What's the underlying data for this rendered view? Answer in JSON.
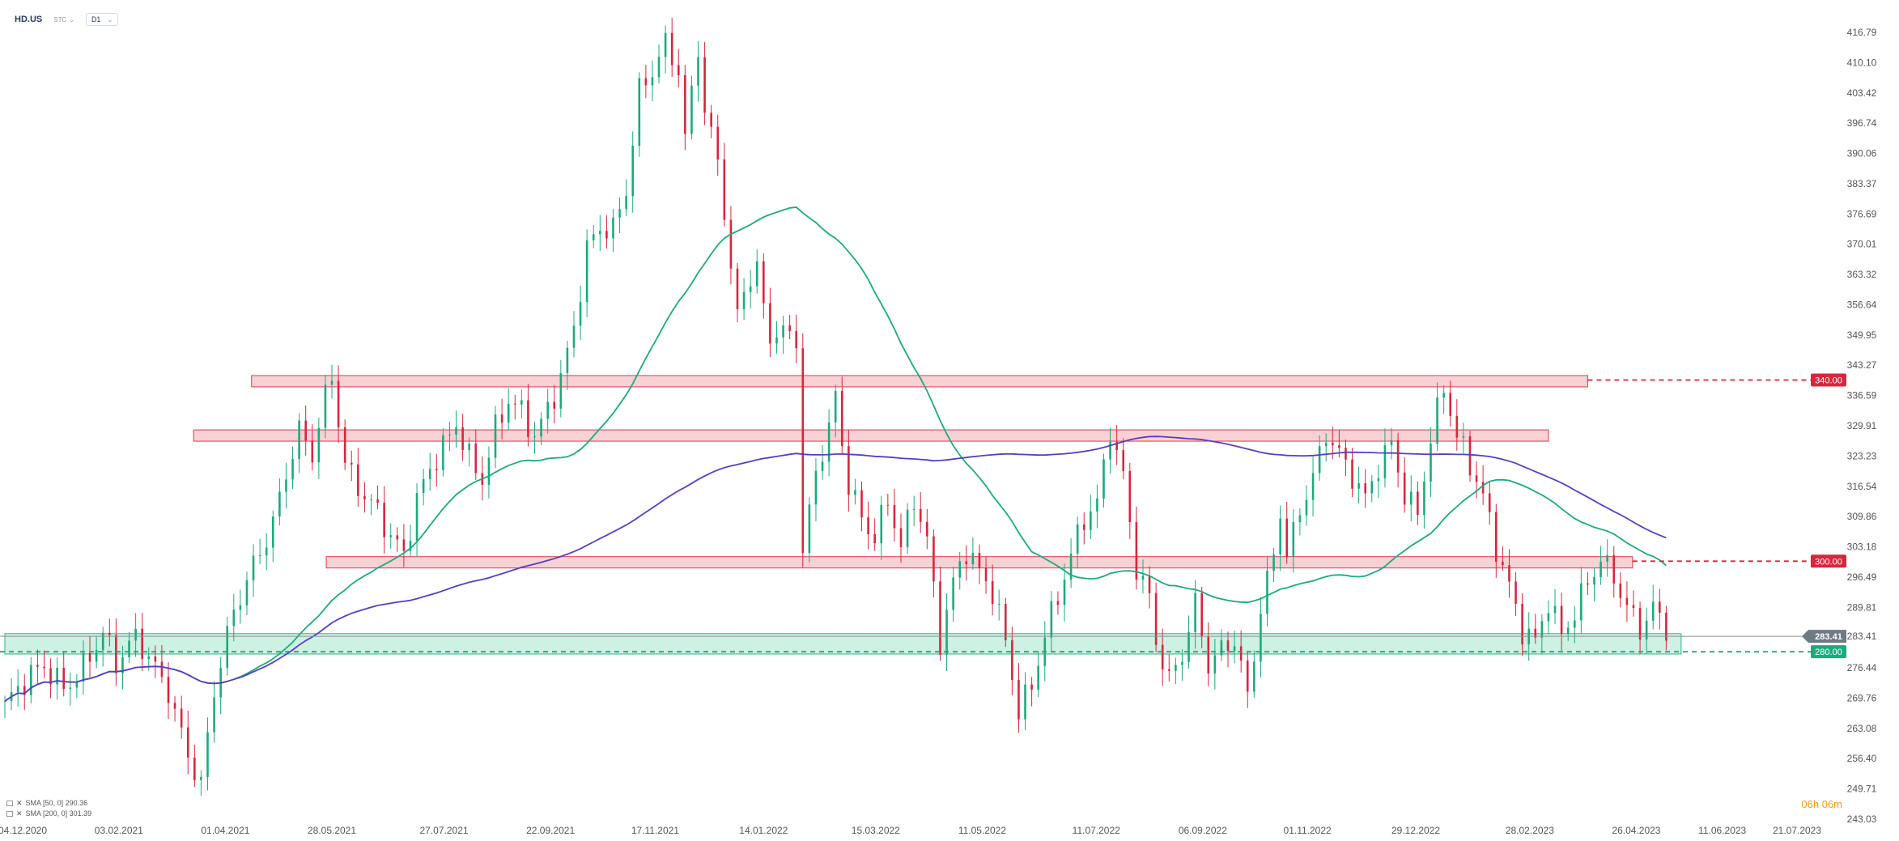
{
  "header": {
    "symbol": "HD.US",
    "timezone": "STC",
    "timeframe": "D1"
  },
  "legend": [
    {
      "label": "SMA [50, 0] 290.36",
      "color": "#1aab7d"
    },
    {
      "label": "SMA [200, 0] 301.39",
      "color": "#5b3cc4"
    }
  ],
  "timer": {
    "text": "06h 06m"
  },
  "colors": {
    "bull": "#1aab7d",
    "bear": "#d8263c",
    "sma50": "#1aab7d",
    "sma200": "#5b3cc4",
    "resistance_fill": "#f7cdd0",
    "resistance_line": "#d8263c",
    "support_fill": "#c8f0df",
    "support_line": "#1aab7d",
    "price_tag": "#707a85"
  },
  "chart_data": {
    "type": "candlestick",
    "y_range": [
      243.03,
      420.0
    ],
    "y_ticks": [
      "416.79",
      "410.10",
      "403.42",
      "396.74",
      "390.06",
      "383.37",
      "376.69",
      "370.01",
      "363.32",
      "356.64",
      "349.95",
      "343.27",
      "336.59",
      "329.91",
      "323.23",
      "316.54",
      "309.86",
      "303.18",
      "296.49",
      "289.81",
      "283.41",
      "276.44",
      "269.76",
      "263.08",
      "256.40",
      "249.71",
      "243.03"
    ],
    "x_labels": [
      "04.12.2020",
      "03.02.2021",
      "01.04.2021",
      "28.05.2021",
      "27.07.2021",
      "22.09.2021",
      "17.11.2021",
      "14.01.2022",
      "15.03.2022",
      "11.05.2022",
      "11.07.2022",
      "06.09.2022",
      "01.11.2022",
      "29.12.2022",
      "28.02.2023",
      "26.04.2023",
      "11.06.2023",
      "21.07.2023"
    ],
    "current_price": "283.41",
    "levels": [
      {
        "label": "340.00",
        "value": 340.0,
        "kind": "resistance"
      },
      {
        "label": "300.00",
        "value": 300.0,
        "kind": "resistance"
      },
      {
        "label": "280.00",
        "value": 280.0,
        "kind": "support"
      }
    ],
    "zones": [
      {
        "low": 338.5,
        "high": 341.0,
        "start": "15.04.2021",
        "end": "31.03.2023",
        "kind": "resistance"
      },
      {
        "low": 326.5,
        "high": 329.0,
        "start": "15.03.2021",
        "end": "10.03.2023",
        "kind": "resistance"
      },
      {
        "low": 298.5,
        "high": 301.0,
        "start": "25.05.2021",
        "end": "24.04.2023",
        "kind": "resistance"
      },
      {
        "low": 279.5,
        "high": 284.0,
        "start": "04.12.2020",
        "end": "20.05.2023",
        "kind": "support"
      }
    ],
    "price_path": [
      [
        0,
        268
      ],
      [
        3,
        272
      ],
      [
        6,
        276
      ],
      [
        9,
        273
      ],
      [
        12,
        278
      ],
      [
        15,
        284
      ],
      [
        17,
        276
      ],
      [
        20,
        282
      ],
      [
        22,
        279
      ],
      [
        25,
        273
      ],
      [
        28,
        258
      ],
      [
        30,
        250
      ],
      [
        32,
        270
      ],
      [
        35,
        288
      ],
      [
        38,
        300
      ],
      [
        41,
        310
      ],
      [
        43,
        320
      ],
      [
        45,
        328
      ],
      [
        47,
        322
      ],
      [
        49,
        335
      ],
      [
        50,
        340
      ],
      [
        52,
        322
      ],
      [
        54,
        318
      ],
      [
        57,
        312
      ],
      [
        59,
        305
      ],
      [
        61,
        300
      ],
      [
        63,
        312
      ],
      [
        65,
        320
      ],
      [
        67,
        326
      ],
      [
        69,
        332
      ],
      [
        71,
        324
      ],
      [
        73,
        318
      ],
      [
        75,
        328
      ],
      [
        77,
        334
      ],
      [
        79,
        332
      ],
      [
        81,
        328
      ],
      [
        83,
        335
      ],
      [
        85,
        342
      ],
      [
        87,
        352
      ],
      [
        89,
        368
      ],
      [
        91,
        372
      ],
      [
        93,
        372
      ],
      [
        95,
        382
      ],
      [
        97,
        405
      ],
      [
        99,
        410
      ],
      [
        101,
        415
      ],
      [
        103,
        408
      ],
      [
        104,
        392
      ],
      [
        106,
        412
      ],
      [
        107,
        398
      ],
      [
        109,
        388
      ],
      [
        110,
        378
      ],
      [
        111,
        365
      ],
      [
        112,
        355
      ],
      [
        113,
        362
      ],
      [
        115,
        366
      ],
      [
        116,
        356
      ],
      [
        117,
        350
      ],
      [
        119,
        349
      ],
      [
        121,
        348
      ],
      [
        122,
        300
      ],
      [
        124,
        320
      ],
      [
        126,
        330
      ],
      [
        127,
        338
      ],
      [
        129,
        318
      ],
      [
        131,
        310
      ],
      [
        133,
        304
      ],
      [
        135,
        312
      ],
      [
        137,
        302
      ],
      [
        139,
        314
      ],
      [
        141,
        306
      ],
      [
        143,
        284
      ],
      [
        145,
        296
      ],
      [
        147,
        302
      ],
      [
        149,
        296
      ],
      [
        151,
        292
      ],
      [
        153,
        282
      ],
      [
        155,
        268
      ],
      [
        157,
        274
      ],
      [
        159,
        285
      ],
      [
        161,
        292
      ],
      [
        163,
        300
      ],
      [
        165,
        308
      ],
      [
        167,
        312
      ],
      [
        169,
        330
      ],
      [
        171,
        320
      ],
      [
        173,
        300
      ],
      [
        175,
        292
      ],
      [
        176,
        282
      ],
      [
        178,
        272
      ],
      [
        180,
        278
      ],
      [
        182,
        290
      ],
      [
        184,
        278
      ],
      [
        186,
        282
      ],
      [
        188,
        284
      ],
      [
        190,
        270
      ],
      [
        192,
        288
      ],
      [
        194,
        300
      ],
      [
        195,
        310
      ],
      [
        196,
        300
      ],
      [
        198,
        312
      ],
      [
        200,
        320
      ],
      [
        202,
        330
      ],
      [
        204,
        324
      ],
      [
        206,
        318
      ],
      [
        208,
        312
      ],
      [
        210,
        320
      ],
      [
        212,
        326
      ],
      [
        214,
        316
      ],
      [
        216,
        312
      ],
      [
        218,
        328
      ],
      [
        220,
        338
      ],
      [
        222,
        326
      ],
      [
        224,
        320
      ],
      [
        226,
        314
      ],
      [
        228,
        304
      ],
      [
        230,
        296
      ],
      [
        232,
        286
      ],
      [
        234,
        282
      ],
      [
        236,
        290
      ],
      [
        238,
        282
      ],
      [
        240,
        288
      ],
      [
        242,
        296
      ],
      [
        244,
        302
      ],
      [
        246,
        298
      ],
      [
        248,
        290
      ],
      [
        250,
        284
      ],
      [
        252,
        288
      ],
      [
        254,
        284
      ]
    ],
    "x_axis_date_of_index_0": "04.12.2020",
    "bar_days": 3.5
  }
}
